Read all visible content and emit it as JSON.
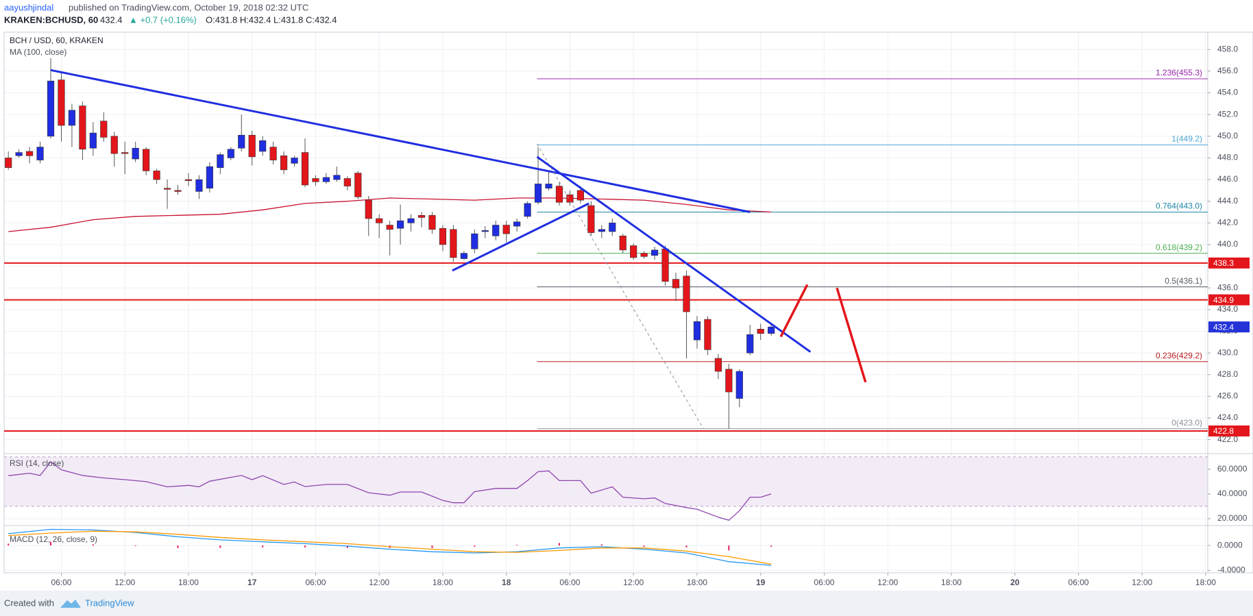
{
  "header": {
    "author": "aayushjindal",
    "published": "published on TradingView.com, October 19, 2018 02:32 UTC",
    "symbol": "KRAKEN:BCHUSD, 60",
    "price": "432.4",
    "change": "▲ +0.7 (+0.16%)",
    "ohlc": "O:431.8 H:432.4 L:431.8 C:432.4"
  },
  "footer": {
    "created_with": "Created with",
    "brand": "TradingView"
  },
  "chart_data": {
    "type": "candlestick",
    "title": "BCH / USD, 60, KRAKEN",
    "up_color": "#1f2ee0",
    "down_color": "#e3161b",
    "grid": true,
    "xlim": [
      0.6,
      114.2
    ],
    "xticks": [
      {
        "value": 6,
        "label": "06:00"
      },
      {
        "value": 12,
        "label": "12:00"
      },
      {
        "value": 18,
        "label": "18:00"
      },
      {
        "value": 24,
        "label": "17"
      },
      {
        "value": 30,
        "label": "06:00"
      },
      {
        "value": 36,
        "label": "12:00"
      },
      {
        "value": 42,
        "label": "18:00"
      },
      {
        "value": 48,
        "label": "18"
      },
      {
        "value": 54,
        "label": "06:00"
      },
      {
        "value": 60,
        "label": "12:00"
      },
      {
        "value": 66,
        "label": "18:00"
      },
      {
        "value": 72,
        "label": "19"
      },
      {
        "value": 78,
        "label": "06:00"
      },
      {
        "value": 84,
        "label": "12:00"
      },
      {
        "value": 90,
        "label": "18:00"
      },
      {
        "value": 96,
        "label": "20"
      },
      {
        "value": 102,
        "label": "06:00"
      },
      {
        "value": 108,
        "label": "12:00"
      },
      {
        "value": 114,
        "label": "18:00"
      }
    ],
    "ylim": [
      420.9,
      459.6
    ],
    "yticks": [
      {
        "value": 422,
        "label": "422.0"
      },
      {
        "value": 424,
        "label": "424.0"
      },
      {
        "value": 426,
        "label": "426.0"
      },
      {
        "value": 428,
        "label": "428.0"
      },
      {
        "value": 430,
        "label": "430.0"
      },
      {
        "value": 432,
        "label": "432.0"
      },
      {
        "value": 434,
        "label": "434.0"
      },
      {
        "value": 436,
        "label": "436.0"
      },
      {
        "value": 438,
        "label": "438.0"
      },
      {
        "value": 440,
        "label": "440.0"
      },
      {
        "value": 442,
        "label": "442.0"
      },
      {
        "value": 444,
        "label": "444.0"
      },
      {
        "value": 446,
        "label": "446.0"
      },
      {
        "value": 448,
        "label": "448.0"
      },
      {
        "value": 450,
        "label": "450.0"
      },
      {
        "value": 452,
        "label": "452.0"
      },
      {
        "value": 454,
        "label": "454.0"
      },
      {
        "value": 456,
        "label": "456.0"
      },
      {
        "value": 458,
        "label": "458.0"
      }
    ],
    "candles": {
      "x": [
        1,
        2,
        3,
        4,
        5,
        6,
        7,
        8,
        9,
        10,
        11,
        12,
        13,
        14,
        15,
        16,
        17,
        18,
        19,
        20,
        21,
        22,
        23,
        24,
        25,
        26,
        27,
        28,
        29,
        30,
        31,
        32,
        33,
        34,
        35,
        36,
        37,
        38,
        39,
        40,
        41,
        42,
        43,
        44,
        45,
        46,
        47,
        48,
        49,
        50,
        51,
        52,
        53,
        54,
        55,
        56,
        57,
        58,
        59,
        60,
        61,
        62,
        63,
        64,
        65,
        66,
        67,
        68,
        69,
        70,
        71,
        72,
        73
      ],
      "open": [
        448.0,
        448.2,
        448.6,
        447.8,
        450.0,
        455.2,
        451.0,
        452.8,
        448.9,
        451.4,
        450.0,
        448.5,
        447.9,
        448.8,
        446.8,
        445.2,
        445.0,
        446.0,
        444.9,
        445.2,
        447.1,
        448.0,
        448.9,
        450.1,
        448.6,
        449.0,
        448.2,
        447.5,
        448.5,
        446.1,
        445.8,
        446.0,
        446.1,
        446.6,
        444.1,
        442.4,
        441.8,
        441.5,
        442.0,
        442.7,
        442.7,
        441.5,
        441.4,
        438.7,
        439.6,
        441.2,
        440.8,
        441.8,
        441.7,
        442.6,
        443.9,
        445.2,
        445.4,
        444.6,
        445.0,
        443.6,
        441.2,
        441.2,
        440.8,
        439.9,
        439.2,
        439.0,
        439.6,
        436.8,
        437.1,
        431.2,
        433.1,
        429.5,
        428.5,
        425.8,
        430.0,
        432.2,
        431.8
      ],
      "high": [
        448.6,
        448.8,
        449.0,
        449.5,
        457.2,
        456.0,
        453.0,
        453.2,
        451.3,
        452.2,
        450.4,
        449.5,
        449.5,
        449.0,
        447.0,
        446.0,
        445.5,
        446.6,
        446.4,
        447.6,
        448.5,
        449.0,
        452.0,
        450.5,
        450.0,
        449.5,
        448.6,
        448.2,
        449.8,
        446.4,
        446.6,
        447.2,
        446.3,
        446.8,
        444.5,
        442.8,
        442.2,
        443.7,
        442.8,
        443.0,
        443.0,
        441.8,
        441.8,
        439.4,
        441.4,
        441.7,
        442.2,
        442.2,
        442.4,
        444.0,
        449.0,
        446.8,
        445.8,
        445.0,
        445.4,
        444.0,
        441.8,
        442.4,
        441.0,
        440.1,
        439.4,
        439.8,
        439.9,
        437.4,
        437.6,
        433.4,
        433.4,
        429.9,
        429.0,
        428.5,
        432.6,
        432.7,
        432.8
      ],
      "low": [
        446.9,
        448.0,
        447.5,
        447.5,
        449.8,
        449.5,
        449.0,
        447.8,
        448.2,
        449.5,
        447.2,
        446.5,
        447.6,
        446.4,
        445.6,
        443.3,
        444.6,
        445.4,
        444.2,
        444.8,
        446.5,
        447.8,
        448.6,
        447.3,
        448.2,
        447.4,
        446.5,
        447.2,
        445.3,
        445.4,
        445.6,
        445.8,
        445.0,
        444.2,
        440.8,
        440.6,
        439.0,
        440.0,
        441.2,
        441.6,
        441.0,
        439.4,
        438.4,
        438.6,
        439.2,
        440.6,
        440.4,
        440.2,
        441.2,
        442.4,
        443.7,
        445.0,
        443.6,
        443.6,
        443.8,
        440.8,
        440.6,
        440.8,
        439.2,
        438.6,
        438.7,
        438.6,
        436.2,
        434.8,
        429.5,
        430.4,
        429.8,
        427.6,
        423.0,
        425.0,
        429.8,
        431.2,
        431.6
      ],
      "close": [
        447.1,
        448.5,
        448.2,
        449.0,
        455.1,
        451.0,
        452.4,
        448.8,
        450.3,
        449.9,
        448.4,
        448.4,
        448.9,
        446.8,
        446.0,
        445.1,
        444.9,
        445.9,
        446.0,
        447.2,
        448.3,
        448.8,
        450.1,
        448.1,
        449.6,
        447.8,
        446.9,
        448.0,
        445.5,
        445.8,
        446.2,
        446.4,
        445.4,
        444.4,
        442.4,
        442.0,
        441.4,
        442.2,
        442.4,
        442.5,
        441.4,
        440.0,
        438.8,
        439.2,
        441.0,
        441.3,
        441.8,
        441.0,
        442.1,
        443.8,
        445.6,
        445.6,
        443.9,
        443.9,
        444.1,
        441.1,
        441.4,
        442.0,
        439.5,
        438.8,
        438.9,
        439.5,
        436.6,
        436.0,
        433.8,
        432.9,
        430.3,
        428.3,
        426.4,
        428.3,
        431.7,
        431.8,
        432.4
      ]
    },
    "ma": {
      "title": "MA (100, close)",
      "color": "#c8102e",
      "x": [
        1,
        5,
        9,
        13,
        17,
        21,
        25,
        29,
        33,
        37,
        41,
        45,
        49,
        53,
        57,
        61,
        65,
        69,
        73
      ],
      "values": [
        441.2,
        441.6,
        442.3,
        442.6,
        442.7,
        442.8,
        443.2,
        443.8,
        444.0,
        444.3,
        444.2,
        444.1,
        444.3,
        444.3,
        444.2,
        444.1,
        443.7,
        443.2,
        443.0
      ]
    },
    "last_price": 432.4,
    "last_price_color": "#2432d8",
    "levels": [
      {
        "value": 438.3,
        "color": "#e3161b"
      },
      {
        "value": 434.9,
        "color": "#e3161b"
      },
      {
        "value": 422.8,
        "color": "#e3161b"
      }
    ],
    "trendlines": [
      {
        "x": [
          5,
          71
        ],
        "y": [
          456.1,
          443.0
        ],
        "color": "#1f2ee0"
      },
      {
        "x": [
          42.9,
          55.8
        ],
        "y": [
          437.6,
          443.8
        ],
        "color": "#1f2ee0"
      },
      {
        "x": [
          50.9,
          76.7
        ],
        "y": [
          448.1,
          430.1
        ],
        "color": "#1f2ee0"
      }
    ],
    "arrows": [
      {
        "x": [
          73.9,
          76.4
        ],
        "y": [
          431.5,
          436.3
        ],
        "color": "#e3161b"
      },
      {
        "x": [
          79.2,
          81.9
        ],
        "y": [
          436.0,
          427.3
        ],
        "color": "#e3161b"
      }
    ],
    "projection": {
      "x": [
        50.9,
        66.6
      ],
      "y": [
        449.3,
        423.0
      ],
      "color": "#8a8f99"
    },
    "fibonacci": {
      "start": 50.9,
      "levels": [
        {
          "label": "1.236(455.3)",
          "value": 455.3,
          "color": "#9c27b0"
        },
        {
          "label": "1(449.2)",
          "value": 449.2,
          "color": "#4fa8d8"
        },
        {
          "label": "0.764(443.0)",
          "value": 443.0,
          "color": "#1e88a8"
        },
        {
          "label": "0.618(439.2)",
          "value": 439.2,
          "color": "#4caf50"
        },
        {
          "label": "0.5(436.1)",
          "value": 436.1,
          "color": "#555a63"
        },
        {
          "label": "0.236(429.2)",
          "value": 429.2,
          "color": "#b71c1c"
        },
        {
          "label": "0(423.0)",
          "value": 423.0,
          "color": "#8a8f99"
        }
      ]
    },
    "rsi": {
      "title": "RSI (14, close)",
      "color": "#8e44ad",
      "band": [
        30,
        70
      ],
      "ylim": [
        15,
        71
      ],
      "yticks": [
        {
          "value": 20,
          "label": "20.0000"
        },
        {
          "value": 40,
          "label": "40.0000"
        },
        {
          "value": 60,
          "label": "60.0000"
        }
      ],
      "x": [
        1,
        3,
        4,
        5,
        6,
        8,
        10,
        12,
        14,
        16,
        18,
        19,
        20,
        22,
        23,
        24,
        25,
        27,
        28,
        29,
        31,
        33,
        35,
        37,
        38,
        40,
        42,
        43,
        44,
        45,
        47,
        49,
        50,
        51,
        52,
        53,
        55,
        56,
        58,
        59,
        61,
        62,
        63,
        65,
        66,
        68,
        69,
        70,
        71,
        72,
        73
      ],
      "values": [
        54.8,
        56.8,
        55,
        66,
        59.6,
        55,
        53,
        51.6,
        50,
        45.8,
        47,
        45.8,
        50.3,
        53.5,
        55,
        51.6,
        54.8,
        47.7,
        49.7,
        46,
        47.7,
        47.7,
        41,
        39,
        41.6,
        41.6,
        34.8,
        32.9,
        32.9,
        41.9,
        44.5,
        44.5,
        50.8,
        58,
        58.7,
        50.8,
        50.8,
        40.6,
        45.8,
        37.4,
        36.1,
        36.8,
        32.3,
        29,
        27.7,
        21.2,
        18.7,
        26.5,
        37.4,
        37.4,
        40
      ]
    },
    "macd": {
      "title": "MACD (12, 26, close, 9)",
      "ylim": [
        -4.4,
        3.1
      ],
      "yticks": [
        {
          "value": -4,
          "label": "-4.0000"
        },
        {
          "value": 0,
          "label": "0.0000"
        }
      ],
      "x": [
        1,
        5,
        9,
        13,
        17,
        21,
        25,
        29,
        33,
        37,
        41,
        45,
        49,
        53,
        57,
        61,
        65,
        69,
        73
      ],
      "macd": {
        "color": "#2196f3",
        "values": [
          1.9,
          2.6,
          2.5,
          2.1,
          1.4,
          0.9,
          0.6,
          0.3,
          -0.1,
          -0.6,
          -1.0,
          -1.2,
          -1.0,
          -0.4,
          -0.2,
          -0.6,
          -1.2,
          -2.6,
          -3.2
        ]
      },
      "signal": {
        "color": "#ff9800",
        "values": [
          1.6,
          2.0,
          2.3,
          2.2,
          1.8,
          1.3,
          0.9,
          0.6,
          0.3,
          -0.2,
          -0.6,
          -1.0,
          -1.1,
          -0.8,
          -0.4,
          -0.4,
          -0.9,
          -1.8,
          -3.0
        ]
      },
      "histogram": {
        "color": "#e91e63",
        "values": [
          0.3,
          0.6,
          0.2,
          -0.1,
          -0.4,
          -0.4,
          -0.3,
          -0.3,
          -0.4,
          -0.4,
          -0.4,
          -0.2,
          0.1,
          0.4,
          0.2,
          -0.2,
          -0.3,
          -0.8,
          -0.2
        ]
      }
    }
  }
}
